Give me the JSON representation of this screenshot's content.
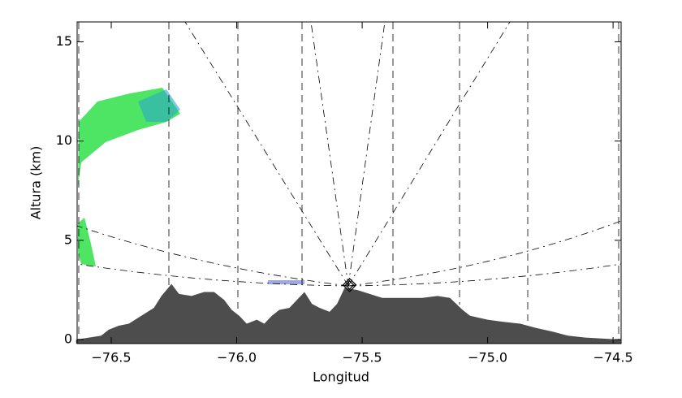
{
  "chart_data": {
    "type": "area",
    "x_label": "Longitud",
    "y_label": "Altura (km)",
    "xlim": [
      -76.636,
      -74.468
    ],
    "ylim": [
      -0.2,
      16
    ],
    "xticks": [
      {
        "value": -76.5,
        "label": "−76.5"
      },
      {
        "value": -76.0,
        "label": "−76.0"
      },
      {
        "value": -75.5,
        "label": "−75.5"
      },
      {
        "value": -75.0,
        "label": "−75.0"
      },
      {
        "value": -74.5,
        "label": "−74.5"
      }
    ],
    "yticks": [
      0,
      5,
      10,
      15
    ],
    "color": "#4d4d4d",
    "x": [
      -76.64,
      -76.54,
      -76.51,
      -76.47,
      -76.43,
      -76.38,
      -76.33,
      -76.3,
      -76.26,
      -76.23,
      -76.18,
      -76.13,
      -76.09,
      -76.05,
      -76.02,
      -75.99,
      -75.96,
      -75.92,
      -75.89,
      -75.86,
      -75.83,
      -75.79,
      -75.76,
      -75.73,
      -75.7,
      -75.67,
      -75.63,
      -75.6,
      -75.57,
      -75.52,
      -75.47,
      -75.42,
      -75.36,
      -75.26,
      -75.2,
      -75.15,
      -75.1,
      -75.07,
      -75.0,
      -74.94,
      -74.87,
      -74.81,
      -74.74,
      -74.68,
      -74.61,
      -74.47
    ],
    "values": [
      0,
      0.2,
      0.5,
      0.7,
      0.8,
      1.2,
      1.6,
      2.2,
      2.8,
      2.3,
      2.2,
      2.4,
      2.4,
      2.0,
      1.5,
      1.2,
      0.8,
      1.0,
      0.8,
      1.2,
      1.5,
      1.6,
      2.0,
      2.4,
      1.8,
      1.6,
      1.4,
      1.8,
      2.6,
      2.5,
      2.3,
      2.1,
      2.1,
      2.1,
      2.2,
      2.1,
      1.5,
      1.2,
      1.0,
      0.9,
      0.8,
      0.6,
      0.4,
      0.2,
      0.1,
      0
    ],
    "radar": {
      "x": -75.55,
      "y": 2.75
    }
  }
}
